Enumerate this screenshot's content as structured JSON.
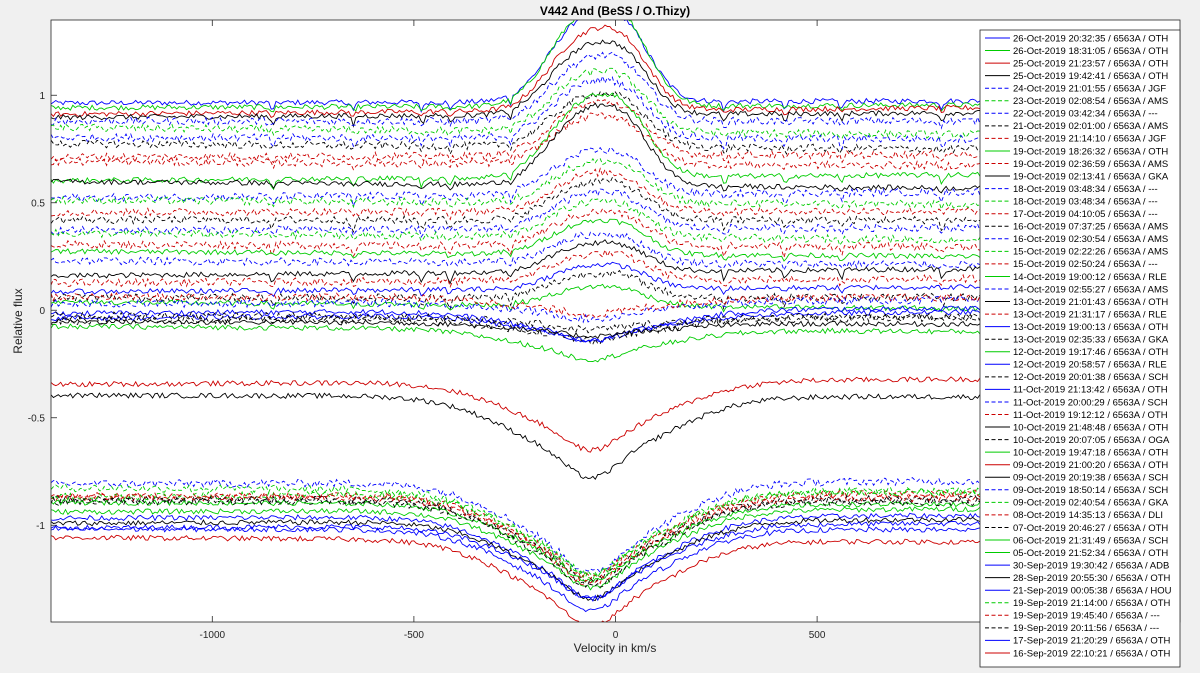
{
  "chart_data": {
    "type": "line",
    "title": "V442 And (BeSS / O.Thizy)",
    "xlabel": "Velocity in km/s",
    "ylabel": "Relative flux",
    "xlim": [
      -1400,
      1400
    ],
    "ylim": [
      -1.45,
      1.35
    ],
    "xticks": [
      -1000,
      -500,
      0,
      500
    ],
    "xtick_labels": [
      "-1000",
      "-500",
      "0",
      "500"
    ],
    "yticks": [
      1,
      0.5,
      0,
      -0.5,
      -1
    ],
    "ytick_labels": [
      "1",
      "0.5",
      "0",
      "-0.5",
      "-1"
    ],
    "grid": false,
    "legend_position": "top-right",
    "series": [
      {
        "name": "26-Oct-2019 20:32:35 / 6563A / OTH",
        "color": "#0000ff",
        "dash": "solid",
        "base": 0.97,
        "amp": 0.38,
        "kind": "emission"
      },
      {
        "name": "26-Oct-2019 18:31:05 / 6563A / OTH",
        "color": "#00cc00",
        "dash": "solid",
        "base": 0.95,
        "amp": 0.42,
        "kind": "emission"
      },
      {
        "name": "25-Oct-2019 21:23:57 / 6563A / OTH",
        "color": "#cc0000",
        "dash": "solid",
        "base": 0.93,
        "amp": 0.34,
        "kind": "emission"
      },
      {
        "name": "25-Oct-2019 19:42:41 / 6563A / OTH",
        "color": "#000000",
        "dash": "solid",
        "base": 0.91,
        "amp": 0.3,
        "kind": "emission"
      },
      {
        "name": "24-Oct-2019 21:01:55 / 6563A / JGF",
        "color": "#0000ff",
        "dash": "dashed",
        "base": 0.88,
        "amp": 0.27,
        "kind": "emission"
      },
      {
        "name": "23-Oct-2019 02:08:54 / 6563A / AMS",
        "color": "#00cc00",
        "dash": "dashed",
        "base": 0.83,
        "amp": 0.25,
        "kind": "emission"
      },
      {
        "name": "22-Oct-2019 03:42:34 / 6563A / ---",
        "color": "#0000ff",
        "dash": "dashed",
        "base": 0.8,
        "amp": 0.24,
        "kind": "emission"
      },
      {
        "name": "21-Oct-2019 02:01:00 / 6563A / AMS",
        "color": "#000000",
        "dash": "dashed",
        "base": 0.76,
        "amp": 0.22,
        "kind": "emission"
      },
      {
        "name": "19-Oct-2019 21:14:10 / 6563A / JGF",
        "color": "#cc0000",
        "dash": "dashed",
        "base": 0.72,
        "amp": 0.22,
        "kind": "emission"
      },
      {
        "name": "19-Oct-2019 18:26:32 / 6563A / OTH",
        "color": "#00cc00",
        "dash": "solid",
        "base": 0.62,
        "amp": 0.34,
        "kind": "emission"
      },
      {
        "name": "19-Oct-2019 02:36:59 / 6563A / AMS",
        "color": "#cc0000",
        "dash": "dashed",
        "base": 0.68,
        "amp": 0.2,
        "kind": "emission"
      },
      {
        "name": "19-Oct-2019 02:13:41 / 6563A / GKA",
        "color": "#000000",
        "dash": "solid",
        "base": 0.58,
        "amp": 0.33,
        "kind": "emission"
      },
      {
        "name": "18-Oct-2019 03:48:34 / 6563A / ---",
        "color": "#0000ff",
        "dash": "dashed",
        "base": 0.54,
        "amp": 0.18,
        "kind": "emission"
      },
      {
        "name": "18-Oct-2019 03:48:34 / 6563A / ---",
        "color": "#00cc00",
        "dash": "dashed",
        "base": 0.5,
        "amp": 0.17,
        "kind": "emission"
      },
      {
        "name": "17-Oct-2019 04:10:05 / 6563A / ---",
        "color": "#cc0000",
        "dash": "dashed",
        "base": 0.46,
        "amp": 0.16,
        "kind": "emission"
      },
      {
        "name": "16-Oct-2019 07:37:25 / 6563A / AMS",
        "color": "#000000",
        "dash": "dashed",
        "base": 0.42,
        "amp": 0.16,
        "kind": "emission"
      },
      {
        "name": "16-Oct-2019 02:30:54 / 6563A / AMS",
        "color": "#0000ff",
        "dash": "dashed",
        "base": 0.38,
        "amp": 0.15,
        "kind": "emission"
      },
      {
        "name": "15-Oct-2019 02:22:26 / 6563A / AMS",
        "color": "#00cc00",
        "dash": "dashed",
        "base": 0.34,
        "amp": 0.15,
        "kind": "emission"
      },
      {
        "name": "15-Oct-2019 02:50:24 / 6563A / ---",
        "color": "#cc0000",
        "dash": "dashed",
        "base": 0.3,
        "amp": 0.14,
        "kind": "emission"
      },
      {
        "name": "14-Oct-2019 19:00:12 / 6563A / RLE",
        "color": "#00cc00",
        "dash": "solid",
        "base": 0.26,
        "amp": 0.14,
        "kind": "emission"
      },
      {
        "name": "14-Oct-2019 02:55:27 / 6563A / AMS",
        "color": "#0000ff",
        "dash": "dashed",
        "base": 0.22,
        "amp": 0.12,
        "kind": "emission"
      },
      {
        "name": "13-Oct-2019 21:01:43 / 6563A / OTH",
        "color": "#000000",
        "dash": "solid",
        "base": 0.18,
        "amp": 0.12,
        "kind": "emission"
      },
      {
        "name": "13-Oct-2019 21:31:17 / 6563A / RLE",
        "color": "#cc0000",
        "dash": "dashed",
        "base": 0.14,
        "amp": 0.11,
        "kind": "emission"
      },
      {
        "name": "13-Oct-2019 19:00:13 / 6563A / OTH",
        "color": "#0000ff",
        "dash": "solid",
        "base": 0.1,
        "amp": 0.1,
        "kind": "emission"
      },
      {
        "name": "13-Oct-2019 02:35:33 / 6563A / GKA",
        "color": "#000000",
        "dash": "dashed",
        "base": 0.06,
        "amp": 0.1,
        "kind": "emission"
      },
      {
        "name": "12-Oct-2019 19:17:46 / 6563A / OTH",
        "color": "#00cc00",
        "dash": "solid",
        "base": 0.02,
        "amp": 0.08,
        "kind": "emission"
      },
      {
        "name": "12-Oct-2019 20:58:57 / 6563A / RLE",
        "color": "#0000ff",
        "dash": "solid",
        "base": -0.02,
        "amp": -0.12,
        "kind": "absorption"
      },
      {
        "name": "12-Oct-2019 20:01:38 / 6563A / SCH",
        "color": "#000000",
        "dash": "dashed",
        "base": -0.04,
        "amp": -0.1,
        "kind": "absorption"
      },
      {
        "name": "11-Oct-2019 21:13:42 / 6563A / OTH",
        "color": "#0000ff",
        "dash": "solid",
        "base": 0.0,
        "amp": -0.14,
        "kind": "absorption"
      },
      {
        "name": "11-Oct-2019 20:00:29 / 6563A / SCH",
        "color": "#0000ff",
        "dash": "dashed",
        "base": 0.04,
        "amp": -0.08,
        "kind": "absorption"
      },
      {
        "name": "11-Oct-2019 19:12:12 / 6563A / OTH",
        "color": "#cc0000",
        "dash": "dashed",
        "base": 0.06,
        "amp": -0.08,
        "kind": "absorption"
      },
      {
        "name": "10-Oct-2019 21:48:48 / 6563A / OTH",
        "color": "#000000",
        "dash": "solid",
        "base": -0.06,
        "amp": -0.06,
        "kind": "absorption"
      },
      {
        "name": "10-Oct-2019 20:07:05 / 6563A / OGA",
        "color": "#000000",
        "dash": "dashed",
        "base": -0.03,
        "amp": -0.06,
        "kind": "absorption"
      },
      {
        "name": "10-Oct-2019 19:47:18 / 6563A / OTH",
        "color": "#00cc00",
        "dash": "solid",
        "base": -0.09,
        "amp": -0.14,
        "kind": "absorption"
      },
      {
        "name": "09-Oct-2019 21:00:20 / 6563A / OTH",
        "color": "#cc0000",
        "dash": "solid",
        "base": -0.33,
        "amp": -0.32,
        "kind": "absorption"
      },
      {
        "name": "09-Oct-2019 20:19:38 / 6563A / SCH",
        "color": "#000000",
        "dash": "solid",
        "base": -0.4,
        "amp": -0.38,
        "kind": "absorption"
      },
      {
        "name": "09-Oct-2019 18:50:14 / 6563A / SCH",
        "color": "#0000ff",
        "dash": "dashed",
        "base": -0.8,
        "amp": -0.42,
        "kind": "absorption"
      },
      {
        "name": "09-Oct-2019 02:40:54 / 6563A / GKA",
        "color": "#00cc00",
        "dash": "dashed",
        "base": -0.84,
        "amp": -0.4,
        "kind": "absorption"
      },
      {
        "name": "08-Oct-2019 14:35:13 / 6563A / DLI",
        "color": "#cc0000",
        "dash": "dashed",
        "base": -0.86,
        "amp": -0.38,
        "kind": "absorption"
      },
      {
        "name": "07-Oct-2019 20:46:27 / 6563A / OTH",
        "color": "#000000",
        "dash": "dashed",
        "base": -0.88,
        "amp": -0.38,
        "kind": "absorption"
      },
      {
        "name": "06-Oct-2019 21:31:49 / 6563A / SCH",
        "color": "#00cc00",
        "dash": "solid",
        "base": -0.9,
        "amp": -0.36,
        "kind": "absorption"
      },
      {
        "name": "05-Oct-2019 21:52:34 / 6563A / OTH",
        "color": "#00cc00",
        "dash": "solid",
        "base": -0.93,
        "amp": -0.36,
        "kind": "absorption"
      },
      {
        "name": "30-Sep-2019 19:30:42 / 6563A / ADB",
        "color": "#0000ff",
        "dash": "solid",
        "base": -0.96,
        "amp": -0.38,
        "kind": "absorption"
      },
      {
        "name": "28-Sep-2019 20:55:30 / 6563A / OTH",
        "color": "#000000",
        "dash": "solid",
        "base": -0.98,
        "amp": -0.36,
        "kind": "absorption"
      },
      {
        "name": "21-Sep-2019 00:05:38 / 6563A / HOU",
        "color": "#0000ff",
        "dash": "solid",
        "base": -1.0,
        "amp": -0.34,
        "kind": "absorption"
      },
      {
        "name": "19-Sep-2019 21:14:00 / 6563A / OTH",
        "color": "#00cc00",
        "dash": "dashed",
        "base": -0.85,
        "amp": -0.38,
        "kind": "absorption"
      },
      {
        "name": "19-Sep-2019 19:45:40 / 6563A / ---",
        "color": "#cc0000",
        "dash": "dashed",
        "base": -0.87,
        "amp": -0.4,
        "kind": "absorption"
      },
      {
        "name": "19-Sep-2019 20:11:56 / 6563A / ---",
        "color": "#000000",
        "dash": "dashed",
        "base": -0.89,
        "amp": -0.4,
        "kind": "absorption"
      },
      {
        "name": "17-Sep-2019 21:20:29 / 6563A / OTH",
        "color": "#0000ff",
        "dash": "solid",
        "base": -1.02,
        "amp": -0.38,
        "kind": "absorption"
      },
      {
        "name": "16-Sep-2019 22:10:21 / 6563A / OTH",
        "color": "#cc0000",
        "dash": "solid",
        "base": -1.07,
        "amp": -0.4,
        "kind": "absorption"
      }
    ]
  }
}
